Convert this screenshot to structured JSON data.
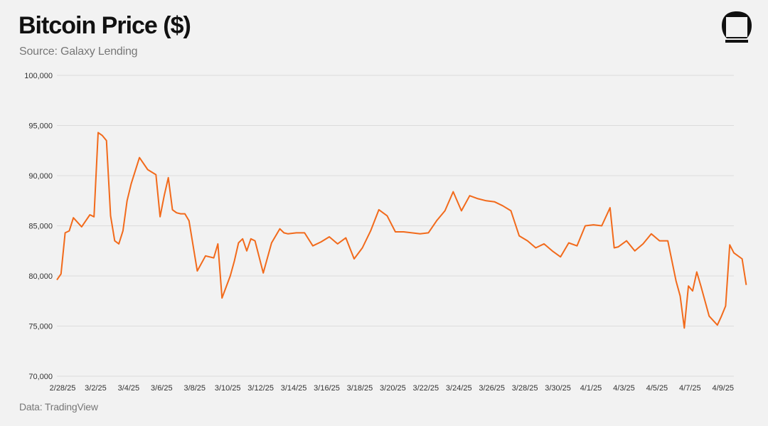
{
  "header": {
    "title": "Bitcoin Price ($)",
    "subtitle": "Source: Galaxy Lending"
  },
  "footer": {
    "note": "Data: TradingView"
  },
  "logo": {
    "icon": "galaxy-logo-icon"
  },
  "chart_data": {
    "type": "line",
    "title": "Bitcoin Price ($)",
    "xlabel": "",
    "ylabel": "",
    "ylim": [
      70000,
      100000
    ],
    "y_ticks": [
      70000,
      75000,
      80000,
      85000,
      90000,
      95000,
      100000
    ],
    "y_tick_labels": [
      "70,000",
      "75,000",
      "80,000",
      "85,000",
      "90,000",
      "95,000",
      "100,000"
    ],
    "x_range": [
      "2/28/25",
      "4/10/25"
    ],
    "x_tick_labels": [
      "2/28/25",
      "3/2/25",
      "3/4/25",
      "3/6/25",
      "3/8/25",
      "3/10/25",
      "3/12/25",
      "3/14/25",
      "3/16/25",
      "3/18/25",
      "3/20/25",
      "3/22/25",
      "3/24/25",
      "3/26/25",
      "3/28/25",
      "3/30/25",
      "4/1/25",
      "4/3/25",
      "4/5/25",
      "4/7/25",
      "4/9/25"
    ],
    "grid": true,
    "legend": "none",
    "line_color": "#f26a1b",
    "series": [
      {
        "x": [
          "2/28/25 00:00",
          "2/28/25 06:00",
          "2/28/25 12:00",
          "2/28/25 18:00",
          "3/1/25 00:00",
          "3/1/25 12:00",
          "3/2/25 00:00",
          "3/2/25 06:00",
          "3/2/25 12:00",
          "3/2/25 18:00",
          "3/3/25 00:00",
          "3/3/25 06:00",
          "3/3/25 12:00",
          "3/3/25 18:00",
          "3/4/25 00:00",
          "3/4/25 06:00",
          "3/4/25 12:00",
          "3/4/25 18:00",
          "3/5/25 00:00",
          "3/5/25 12:00",
          "3/6/25 00:00",
          "3/6/25 06:00",
          "3/6/25 12:00",
          "3/6/25 18:00",
          "3/7/25 00:00",
          "3/7/25 06:00",
          "3/7/25 12:00",
          "3/7/25 18:00",
          "3/8/25 00:00",
          "3/8/25 12:00",
          "3/9/25 00:00",
          "3/9/25 12:00",
          "3/9/25 18:00",
          "3/10/25 00:00",
          "3/10/25 12:00",
          "3/10/25 18:00",
          "3/11/25 00:00",
          "3/11/25 06:00",
          "3/11/25 12:00",
          "3/11/25 18:00",
          "3/12/25 00:00",
          "3/12/25 12:00",
          "3/13/25 00:00",
          "3/13/25 12:00",
          "3/13/25 18:00",
          "3/14/25 00:00",
          "3/14/25 12:00",
          "3/15/25 00:00",
          "3/15/25 12:00",
          "3/16/25 00:00",
          "3/16/25 12:00",
          "3/17/25 00:00",
          "3/17/25 12:00",
          "3/18/25 00:00",
          "3/18/25 12:00",
          "3/19/25 00:00",
          "3/19/25 12:00",
          "3/20/25 00:00",
          "3/20/25 12:00",
          "3/21/25 00:00",
          "3/21/25 12:00",
          "3/22/25 00:00",
          "3/22/25 12:00",
          "3/23/25 00:00",
          "3/23/25 12:00",
          "3/24/25 00:00",
          "3/24/25 12:00",
          "3/25/25 00:00",
          "3/25/25 12:00",
          "3/26/25 00:00",
          "3/26/25 12:00",
          "3/27/25 00:00",
          "3/27/25 12:00",
          "3/28/25 00:00",
          "3/28/25 12:00",
          "3/29/25 00:00",
          "3/29/25 12:00",
          "3/30/25 00:00",
          "3/30/25 12:00",
          "3/31/25 00:00",
          "3/31/25 12:00",
          "4/1/25 00:00",
          "4/1/25 12:00",
          "4/2/25 00:00",
          "4/2/25 12:00",
          "4/2/25 18:00",
          "4/3/25 00:00",
          "4/3/25 12:00",
          "4/4/25 00:00",
          "4/4/25 12:00",
          "4/5/25 00:00",
          "4/5/25 12:00",
          "4/6/25 00:00",
          "4/6/25 12:00",
          "4/6/25 18:00",
          "4/7/25 00:00",
          "4/7/25 06:00",
          "4/7/25 12:00",
          "4/7/25 18:00",
          "4/8/25 00:00",
          "4/8/25 12:00",
          "4/9/25 00:00",
          "4/9/25 06:00",
          "4/9/25 12:00",
          "4/9/25 18:00",
          "4/10/25 00:00",
          "4/10/25 12:00",
          "4/10/25 18:00"
        ],
        "y": [
          79600,
          80200,
          84300,
          84500,
          85800,
          84900,
          86100,
          85900,
          94300,
          94000,
          93500,
          86000,
          83500,
          83200,
          84500,
          87500,
          89200,
          90500,
          91800,
          90600,
          90100,
          85900,
          88000,
          89800,
          86600,
          86300,
          86200,
          86200,
          85500,
          80500,
          82000,
          81800,
          83200,
          77800,
          80000,
          81500,
          83300,
          83700,
          82500,
          83700,
          83500,
          80300,
          83300,
          84700,
          84300,
          84200,
          84300,
          84300,
          83000,
          83400,
          83900,
          83200,
          83800,
          81700,
          82800,
          84500,
          86600,
          86000,
          84400,
          84400,
          84300,
          84200,
          84300,
          85500,
          86500,
          88400,
          86500,
          88000,
          87700,
          87500,
          87400,
          87000,
          86500,
          84000,
          83500,
          82800,
          83200,
          82500,
          81900,
          83300,
          83000,
          85000,
          85100,
          85000,
          86800,
          82800,
          82900,
          83500,
          82500,
          83200,
          84200,
          83500,
          83500,
          79500,
          78000,
          74800,
          79000,
          78500,
          80400,
          79000,
          76000,
          75100,
          76000,
          77000,
          83100,
          82300,
          81700,
          79100
        ]
      }
    ]
  }
}
